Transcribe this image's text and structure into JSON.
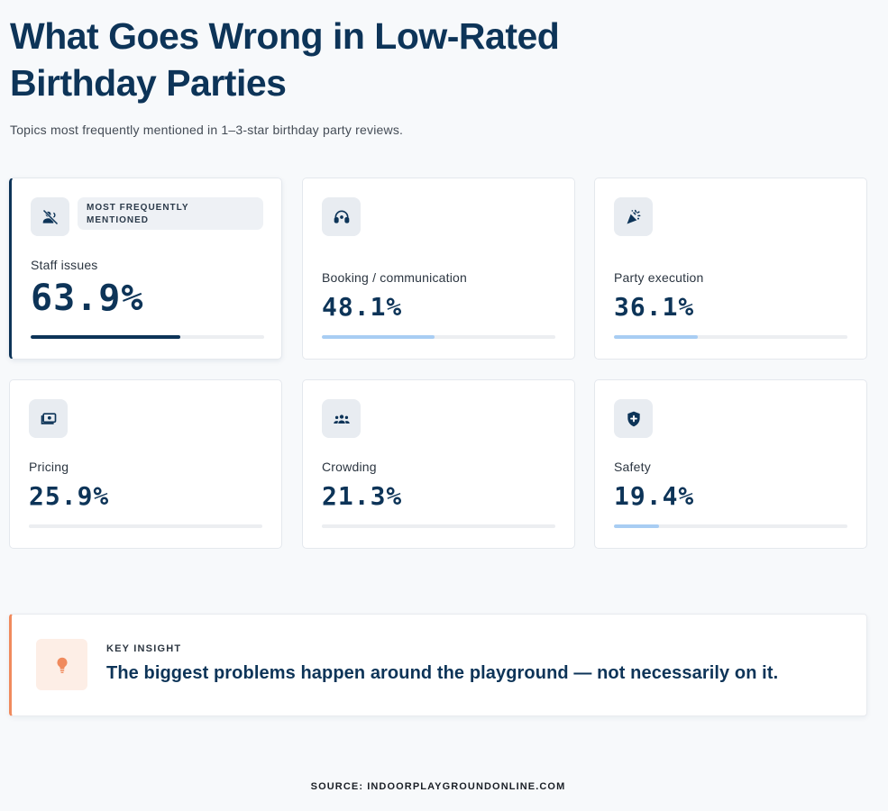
{
  "header": {
    "title": "What Goes Wrong in Low-Rated Birthday Parties",
    "subtitle": "Topics most frequently mentioned in 1–3-star birthday party reviews."
  },
  "cards": [
    {
      "label": "Staff issues",
      "value": "63.9%",
      "percent": 63.9,
      "icon": "staff-off-icon",
      "badge": "MOST FREQUENTLY MENTIONED",
      "bar_color": "#0d3458"
    },
    {
      "label": "Booking / communication",
      "value": "48.1%",
      "percent": 48.1,
      "icon": "headset-icon",
      "bar_color": "#a8cdf3"
    },
    {
      "label": "Party execution",
      "value": "36.1%",
      "percent": 36.1,
      "icon": "party-popper-icon",
      "bar_color": "#a8cdf3"
    },
    {
      "label": "Pricing",
      "value": "25.9%",
      "percent": 25.9,
      "icon": "money-icon",
      "bar_color": "#eceef1"
    },
    {
      "label": "Crowding",
      "value": "21.3%",
      "percent": 21.3,
      "icon": "group-icon",
      "bar_color": "#eceef1"
    },
    {
      "label": "Safety",
      "value": "19.4%",
      "percent": 19.4,
      "icon": "shield-icon",
      "bar_color": "#a8cdf3"
    }
  ],
  "insight": {
    "label": "KEY INSIGHT",
    "text": "The biggest problems happen around the playground — not necessarily on it.",
    "icon": "lightbulb-icon",
    "accent": "#f08a5d"
  },
  "footer": {
    "source": "SOURCE: INDOORPLAYGROUNDONLINE.COM"
  },
  "colors": {
    "primary": "#0d3458",
    "light_bar": "#a8cdf3",
    "track": "#eceef1",
    "accent": "#f08a5d",
    "background": "#f7f9fb"
  }
}
